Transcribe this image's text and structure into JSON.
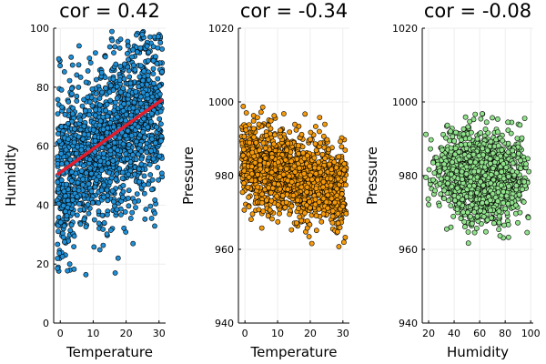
{
  "chart_data": [
    {
      "type": "scatter",
      "title": "cor = 0.42",
      "xlabel": "Temperature",
      "ylabel": "Humidity",
      "xlim": [
        -2,
        32
      ],
      "ylim": [
        0,
        100
      ],
      "xticks": [
        0,
        10,
        20,
        30
      ],
      "yticks": [
        0,
        20,
        40,
        60,
        80,
        100
      ],
      "grid": true,
      "series": [
        {
          "marker_color": "#1f8fd6",
          "cloud": {
            "x_range": [
              -1,
              31
            ],
            "y_center_at_x0": 50,
            "y_slope": 0.8,
            "y_spread": 14,
            "y_min": 16,
            "y_max": 99,
            "n": 1500
          },
          "fit_line": {
            "color": "#e21d2c",
            "x": [
              -1,
              31
            ],
            "y": [
              50.3,
              75.8
            ]
          }
        }
      ]
    },
    {
      "type": "scatter",
      "title": "cor = -0.34",
      "xlabel": "Temperature",
      "ylabel": "Pressure",
      "xlim": [
        -2,
        32
      ],
      "ylim": [
        940,
        1020
      ],
      "xticks": [
        0,
        10,
        20,
        30
      ],
      "yticks": [
        940,
        960,
        980,
        1000,
        1020
      ],
      "grid": true,
      "series": [
        {
          "marker_color": "#f59a0b",
          "cloud": {
            "x_range": [
              -1,
              31
            ],
            "y_center_at_x0": 984,
            "y_slope": -0.25,
            "y_spread": 5.5,
            "y_min": 960,
            "y_max": 999,
            "n": 1500
          }
        }
      ]
    },
    {
      "type": "scatter",
      "title": "cor = -0.08",
      "xlabel": "Humidity",
      "ylabel": "Pressure",
      "xlim": [
        15,
        102
      ],
      "ylim": [
        940,
        1020
      ],
      "xticks": [
        20,
        40,
        60,
        80,
        100
      ],
      "yticks": [
        940,
        960,
        980,
        1000,
        1020
      ],
      "grid": true,
      "series": [
        {
          "marker_color": "#91e28c",
          "cloud": {
            "x_range": [
              17,
              99
            ],
            "x_center": 62,
            "x_spread": 17,
            "y_center_at_x0": 982,
            "y_slope": -0.035,
            "y_spread": 6,
            "y_min": 960,
            "y_max": 999,
            "n": 1500
          }
        }
      ]
    }
  ]
}
